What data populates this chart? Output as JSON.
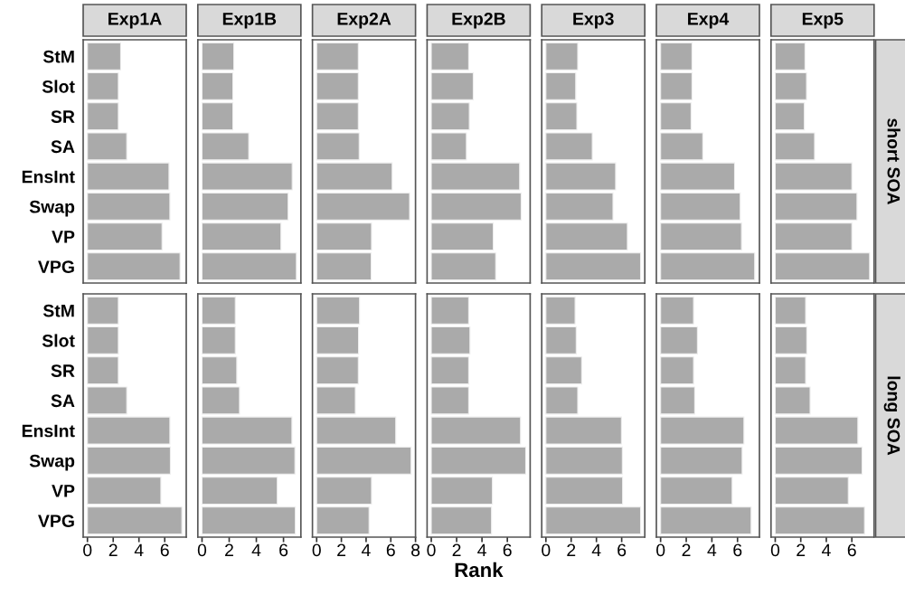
{
  "chart_data": [
    {
      "type": "bar",
      "orientation": "horizontal",
      "title": "Exp1A",
      "categories": [
        "StM",
        "Slot",
        "SR",
        "SA",
        "EnsInt",
        "Swap",
        "VP",
        "VPG"
      ],
      "values": [
        2.58,
        2.4,
        2.4,
        3.05,
        6.33,
        6.4,
        5.79,
        7.19
      ],
      "color": "#aaaaaa",
      "xlim": [
        -0.33,
        7.67
      ],
      "xticks": [
        0,
        2,
        4,
        6
      ],
      "tick_labels": "y"
    },
    {
      "type": "bar",
      "orientation": "horizontal",
      "title": "Exp1B",
      "categories": [
        null,
        null,
        null,
        null,
        null,
        null,
        null,
        null
      ],
      "values": [
        2.34,
        2.27,
        2.27,
        3.44,
        6.64,
        6.34,
        5.81,
        6.95
      ],
      "color": "#aaaaaa",
      "xlim": [
        -0.31,
        7.28
      ],
      "xticks": [
        0,
        2,
        4,
        6
      ],
      "tick_labels": false
    },
    {
      "type": "bar",
      "orientation": "horizontal",
      "title": "Exp2A",
      "categories": [
        null,
        null,
        null,
        null,
        null,
        null,
        null,
        null
      ],
      "values": [
        3.37,
        3.37,
        3.37,
        3.44,
        6.11,
        7.52,
        4.44,
        4.41
      ],
      "color": "#aaaaaa",
      "xlim": [
        -0.34,
        8.0
      ],
      "xticks": [
        0,
        2,
        4,
        6,
        8
      ],
      "tick_labels": false
    },
    {
      "type": "bar",
      "orientation": "horizontal",
      "title": "Exp2B",
      "categories": [
        null,
        null,
        null,
        null,
        null,
        null,
        null,
        null
      ],
      "values": [
        2.95,
        3.31,
        3.0,
        2.77,
        6.97,
        7.09,
        4.89,
        5.08
      ],
      "color": "#aaaaaa",
      "xlim": [
        -0.33,
        7.8
      ],
      "xticks": [
        0,
        2,
        4,
        6
      ],
      "tick_labels": false
    },
    {
      "type": "bar",
      "orientation": "horizontal",
      "title": "Exp3",
      "categories": [
        null,
        null,
        null,
        null,
        null,
        null,
        null,
        null
      ],
      "values": [
        2.52,
        2.36,
        2.45,
        3.67,
        5.52,
        5.31,
        6.45,
        7.5
      ],
      "color": "#aaaaaa",
      "xlim": [
        -0.33,
        7.83
      ],
      "xticks": [
        0,
        2,
        4,
        6
      ],
      "tick_labels": false
    },
    {
      "type": "bar",
      "orientation": "horizontal",
      "title": "Exp4",
      "categories": [
        null,
        null,
        null,
        null,
        null,
        null,
        null,
        null
      ],
      "values": [
        2.45,
        2.45,
        2.38,
        3.29,
        5.77,
        6.21,
        6.31,
        7.34
      ],
      "color": "#aaaaaa",
      "xlim": [
        -0.33,
        7.71
      ],
      "xticks": [
        0,
        2,
        4,
        6
      ],
      "tick_labels": false
    },
    {
      "type": "bar",
      "orientation": "horizontal",
      "title": "Exp5",
      "categories": [
        null,
        null,
        null,
        null,
        null,
        null,
        null,
        null
      ],
      "values": [
        2.33,
        2.45,
        2.28,
        3.08,
        6.0,
        6.4,
        6.0,
        7.39
      ],
      "color": "#aaaaaa",
      "xlim": [
        -0.33,
        7.74
      ],
      "xticks": [
        0,
        2,
        4,
        6
      ],
      "tick_labels": false,
      "annotations": [
        "short SOA"
      ]
    },
    {
      "type": "bar",
      "orientation": "horizontal",
      "categories": [
        "StM",
        "Slot",
        "SR",
        "SA",
        "EnsInt",
        "Swap",
        "VP",
        "VPG"
      ],
      "values": [
        2.4,
        2.4,
        2.4,
        3.05,
        6.4,
        6.44,
        5.7,
        7.33
      ],
      "color": "#aaaaaa",
      "xlim": [
        -0.33,
        7.67
      ],
      "xticks": [
        0,
        2,
        4,
        6
      ]
    },
    {
      "type": "bar",
      "orientation": "horizontal",
      "categories": [
        null,
        null,
        null,
        null,
        null,
        null,
        null,
        null
      ],
      "values": [
        2.45,
        2.45,
        2.56,
        2.76,
        6.62,
        6.84,
        5.54,
        6.87
      ],
      "color": "#aaaaaa",
      "xlim": [
        -0.31,
        7.28
      ],
      "xticks": [
        0,
        2,
        4,
        6
      ],
      "tick_labels": "x"
    },
    {
      "type": "bar",
      "orientation": "horizontal",
      "categories": [
        null,
        null,
        null,
        null,
        null,
        null,
        null,
        null
      ],
      "values": [
        3.47,
        3.39,
        3.37,
        3.13,
        6.4,
        7.64,
        4.44,
        4.24
      ],
      "color": "#aaaaaa",
      "xlim": [
        -0.34,
        8.0
      ],
      "xticks": [
        0,
        2,
        4,
        6,
        8
      ],
      "tick_labels": "x"
    },
    {
      "type": "bar",
      "orientation": "horizontal",
      "xlabel": "Rank",
      "categories": [
        null,
        null,
        null,
        null,
        null,
        null,
        null,
        null
      ],
      "values": [
        2.95,
        3.05,
        2.95,
        2.95,
        7.04,
        7.45,
        4.82,
        4.75
      ],
      "color": "#aaaaaa",
      "xlim": [
        -0.33,
        7.8
      ],
      "xticks": [
        0,
        2,
        4,
        6
      ],
      "tick_labels": "x"
    },
    {
      "type": "bar",
      "orientation": "horizontal",
      "categories": [
        null,
        null,
        null,
        null,
        null,
        null,
        null,
        null
      ],
      "values": [
        2.31,
        2.4,
        2.83,
        2.52,
        5.98,
        6.05,
        6.07,
        7.5
      ],
      "color": "#aaaaaa",
      "xlim": [
        -0.33,
        7.83
      ],
      "xticks": [
        0,
        2,
        4,
        6
      ],
      "tick_labels": "x"
    },
    {
      "type": "bar",
      "orientation": "horizontal",
      "categories": [
        null,
        null,
        null,
        null,
        null,
        null,
        null,
        null
      ],
      "values": [
        2.57,
        2.87,
        2.57,
        2.66,
        6.5,
        6.36,
        5.58,
        7.06
      ],
      "color": "#aaaaaa",
      "xlim": [
        -0.33,
        7.71
      ],
      "xticks": [
        0,
        2,
        4,
        6
      ],
      "tick_labels": "x"
    },
    {
      "type": "bar",
      "orientation": "horizontal",
      "categories": [
        null,
        null,
        null,
        null,
        null,
        null,
        null,
        null
      ],
      "values": [
        2.38,
        2.47,
        2.38,
        2.73,
        6.47,
        6.8,
        5.72,
        6.99
      ],
      "color": "#aaaaaa",
      "xlim": [
        -0.33,
        7.74
      ],
      "xticks": [
        0,
        2,
        4,
        6
      ],
      "tick_labels": "x",
      "annotations": [
        "long SOA"
      ]
    }
  ]
}
